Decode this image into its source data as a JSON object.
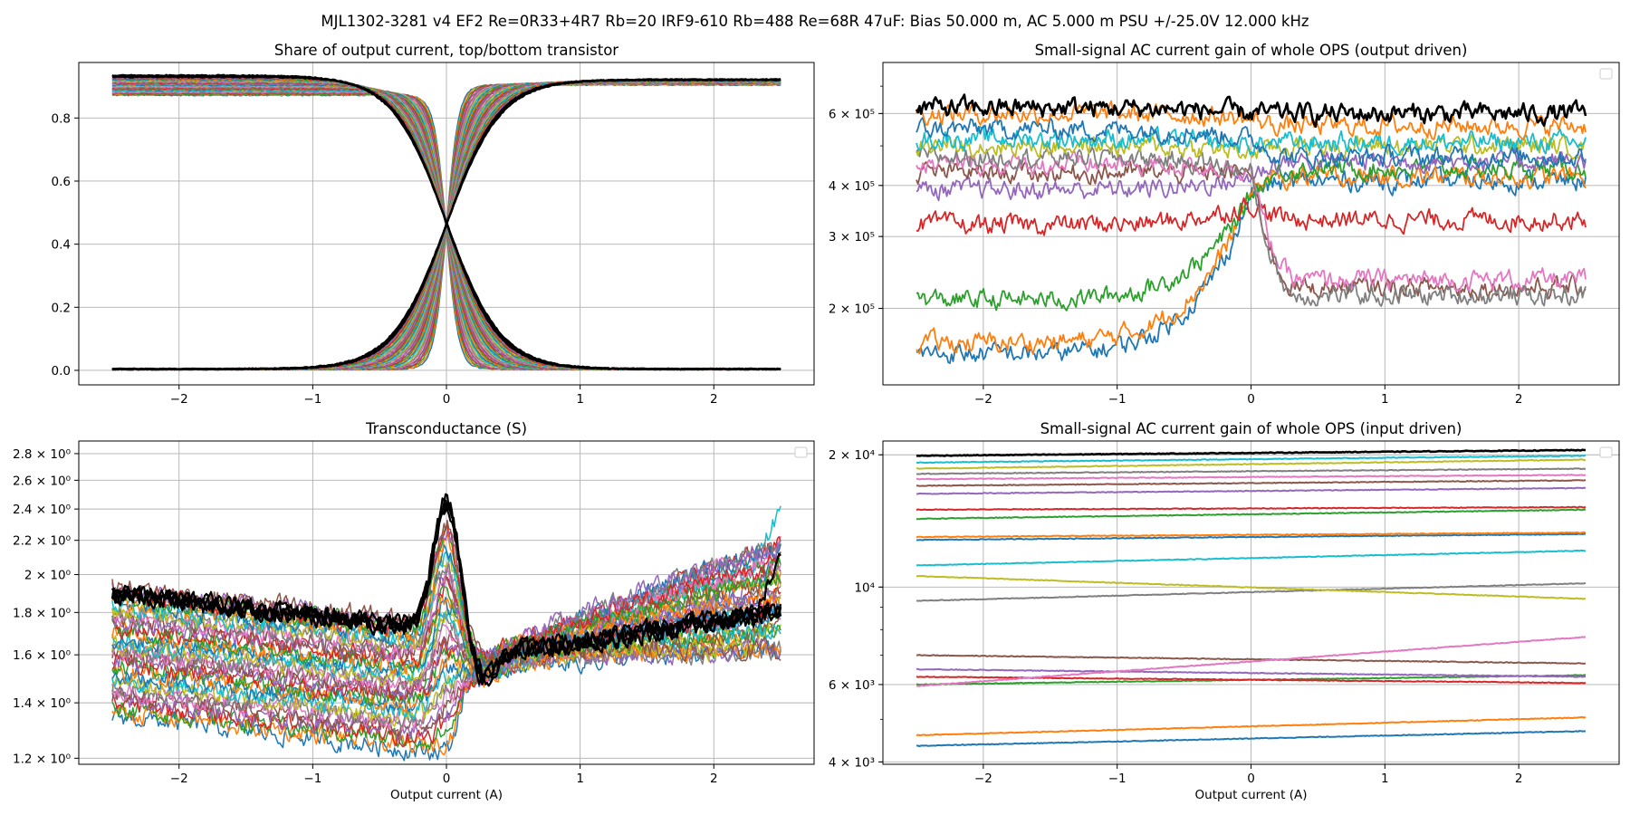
{
  "suptitle": "MJL1302-3281 v4 EF2 Re=0R33+4R7 Rb=20 IRF9-610 Rb=488 Re=68R 47uF: Bias 50.000 m, AC 5.000 m PSU +/-25.0V 12.000 kHz",
  "colors": {
    "palette": [
      "#1f77b4",
      "#ff7f0e",
      "#2ca02c",
      "#d62728",
      "#9467bd",
      "#8c564b",
      "#e377c2",
      "#7f7f7f",
      "#bcbd22",
      "#17becf"
    ],
    "highlight": "#000000",
    "grid": "#b0b0b0"
  },
  "chart_data": [
    {
      "id": "share",
      "type": "line",
      "title": "Share of output current, top/bottom transistor",
      "xlabel": "",
      "ylabel": "",
      "xlim": [
        -2.75,
        2.75
      ],
      "ylim": [
        -0.046,
        0.976
      ],
      "yscale": "linear",
      "xticks": [
        -2,
        -1,
        0,
        1,
        2
      ],
      "xtick_labels": [
        "−2",
        "−1",
        "0",
        "1",
        "2"
      ],
      "yticks": [
        0.0,
        0.2,
        0.4,
        0.6,
        0.8
      ],
      "ytick_labels": [
        "0.0",
        "0.2",
        "0.4",
        "0.6",
        "0.8"
      ],
      "grid": true,
      "legend": "none",
      "series_note": "two families of sigmoid curves (top and bottom transistor) crossing at about x=0, y=0.47",
      "families": {
        "upper_plateau_left": [
          0.872,
          0.935
        ],
        "upper_plateau_right": [
          0.905,
          0.922
        ],
        "lower_plateau": 0.004,
        "crossing": [
          0.0,
          0.47
        ],
        "transition_halfwidth": [
          0.1,
          0.45
        ]
      }
    },
    {
      "id": "ac_gain_output",
      "type": "line",
      "title": "Small-signal AC current gain of whole OPS (output driven)",
      "xlabel": "",
      "ylabel": "",
      "xlim": [
        -2.75,
        2.75
      ],
      "ylim": [
        130000,
        800000
      ],
      "yscale": "log",
      "xticks": [
        -2,
        -1,
        0,
        1,
        2
      ],
      "xtick_labels": [
        "−2",
        "−1",
        "0",
        "1",
        "2"
      ],
      "yticks": [
        200000,
        300000,
        400000,
        600000
      ],
      "ytick_labels": [
        "2 × 10⁵",
        "3 × 10⁵",
        "4 × 10⁵",
        "6 × 10⁵"
      ],
      "grid": true,
      "legend": "top-right (empty)",
      "series_levels": [
        {
          "left": 155000,
          "peak": 380000,
          "right": 410000
        },
        {
          "left": 165000,
          "peak": 390000,
          "right": 420000
        },
        {
          "left": 210000,
          "peak": 380000,
          "right": 440000
        },
        {
          "left": 320000,
          "peak": 360000,
          "right": 330000
        },
        {
          "left": 390000,
          "peak": 420000,
          "right": 460000
        },
        {
          "left": 430000,
          "peak": 430000,
          "right": 225000
        },
        {
          "left": 450000,
          "peak": 440000,
          "right": 235000
        },
        {
          "left": 470000,
          "peak": 430000,
          "right": 215000
        },
        {
          "left": 500000,
          "peak": 480000,
          "right": 500000
        },
        {
          "left": 520000,
          "peak": 500000,
          "right": 510000
        },
        {
          "left": 550000,
          "peak": 520000,
          "right": 470000
        },
        {
          "left": 600000,
          "peak": 580000,
          "right": 560000
        },
        {
          "left": 620000,
          "peak": 600000,
          "right": 600000
        }
      ]
    },
    {
      "id": "transconductance",
      "type": "line",
      "title": "Transconductance (S)",
      "xlabel": "Output current (A)",
      "ylabel": "",
      "xlim": [
        -2.75,
        2.75
      ],
      "ylim": [
        1.18,
        2.9
      ],
      "yscale": "log",
      "xticks": [
        -2,
        -1,
        0,
        1,
        2
      ],
      "xtick_labels": [
        "−2",
        "−1",
        "0",
        "1",
        "2"
      ],
      "yticks": [
        1.2,
        1.4,
        1.6,
        1.8,
        2.0,
        2.2,
        2.4,
        2.6,
        2.8
      ],
      "ytick_labels": [
        "1.2 × 10⁰",
        "1.4 × 10⁰",
        "1.6 × 10⁰",
        "1.8 × 10⁰",
        "2 × 10⁰",
        "2.2 × 10⁰",
        "2.4 × 10⁰",
        "2.6 × 10⁰",
        "2.8 × 10⁰"
      ],
      "grid": true,
      "legend": "top-right (empty)",
      "envelope": {
        "left_range": [
          1.35,
          2.0
        ],
        "center_range": [
          1.22,
          2.5
        ],
        "right_range": [
          1.6,
          2.4
        ],
        "dip_at": 0.25
      }
    },
    {
      "id": "ac_gain_input",
      "type": "line",
      "title": "Small-signal AC current gain of whole OPS (input driven)",
      "xlabel": "Output current (A)",
      "ylabel": "",
      "xlim": [
        -2.75,
        2.75
      ],
      "ylim": [
        3950,
        21500
      ],
      "yscale": "log",
      "xticks": [
        -2,
        -1,
        0,
        1,
        2
      ],
      "xtick_labels": [
        "−2",
        "−1",
        "0",
        "1",
        "2"
      ],
      "yticks": [
        4000,
        6000,
        10000,
        20000
      ],
      "ytick_labels": [
        "4 × 10³",
        "6 × 10³",
        "10⁴",
        "2 × 10⁴"
      ],
      "grid": true,
      "legend": "top-right (empty)",
      "series_levels": [
        {
          "left": 4350,
          "right": 4700
        },
        {
          "left": 4600,
          "right": 5050
        },
        {
          "left": 6000,
          "right": 6300
        },
        {
          "left": 6250,
          "right": 6050
        },
        {
          "left": 6500,
          "right": 6250
        },
        {
          "left": 7000,
          "right": 6700
        },
        {
          "left": 5950,
          "right": 7700
        },
        {
          "left": 9300,
          "right": 10200
        },
        {
          "left": 10600,
          "right": 9400
        },
        {
          "left": 11200,
          "right": 12100
        },
        {
          "left": 12800,
          "right": 13200
        },
        {
          "left": 13000,
          "right": 13300
        },
        {
          "left": 14300,
          "right": 15000
        },
        {
          "left": 15000,
          "right": 15200
        },
        {
          "left": 16300,
          "right": 16800
        },
        {
          "left": 17000,
          "right": 17500
        },
        {
          "left": 17600,
          "right": 18000
        },
        {
          "left": 18100,
          "right": 18600
        },
        {
          "left": 18600,
          "right": 19500
        },
        {
          "left": 19200,
          "right": 19900
        },
        {
          "left": 19900,
          "right": 20500
        }
      ]
    }
  ]
}
